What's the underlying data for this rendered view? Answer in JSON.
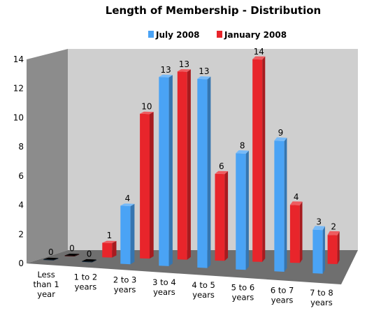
{
  "chart_data": {
    "type": "bar",
    "title": "Length of Membership - Distribution",
    "xlabel": "",
    "ylabel": "",
    "ylim": [
      0,
      14
    ],
    "yticks": [
      "0",
      "2",
      "4",
      "6",
      "8",
      "10",
      "12",
      "14"
    ],
    "grid": false,
    "legend_position": "top",
    "categories": [
      [
        "Less",
        "than 1",
        "year"
      ],
      [
        "1 to 2",
        "years"
      ],
      [
        "2 to 3",
        "years"
      ],
      [
        "3 to 4",
        "years"
      ],
      [
        "4 to 5",
        "years"
      ],
      [
        "5 to 6",
        "years"
      ],
      [
        "6 to 7",
        "years"
      ],
      [
        "7 to 8",
        "years"
      ]
    ],
    "series": [
      {
        "name": "July 2008",
        "color": "#4aa3f5",
        "values": [
          0,
          0,
          4,
          13,
          13,
          8,
          9,
          3
        ]
      },
      {
        "name": "January 2008",
        "color": "#e8252b",
        "values": [
          0,
          1,
          10,
          13,
          6,
          14,
          4,
          2
        ]
      }
    ]
  }
}
